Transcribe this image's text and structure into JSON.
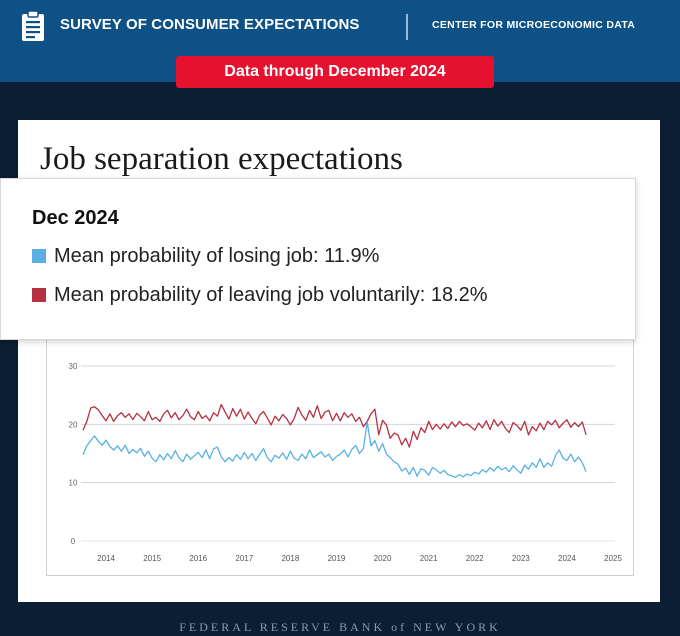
{
  "header": {
    "title": "SURVEY OF CONSUMER EXPECTATIONS",
    "org": "CENTER FOR MICROECONOMIC DATA",
    "icon": "clipboard-icon"
  },
  "badge": {
    "label": "Data through December 2024"
  },
  "card": {
    "title": "Job separation expectations"
  },
  "tooltip": {
    "period": "Dec 2024",
    "rows": [
      {
        "label": "Mean probability of losing job: 11.9%",
        "color": "#5ab0e6"
      },
      {
        "label": "Mean probability of leaving job voluntarily: 18.2%",
        "color": "#b5313f"
      }
    ]
  },
  "footer": {
    "text": "FEDERAL RESERVE BANK of NEW YORK"
  },
  "chart_data": {
    "type": "line",
    "ylim": [
      0,
      30
    ],
    "xlim": [
      2013.5,
      2025
    ],
    "yticks": [
      "0",
      "10",
      "20",
      "30"
    ],
    "xticks": [
      "2014",
      "2015",
      "2016",
      "2017",
      "2018",
      "2019",
      "2020",
      "2021",
      "2022",
      "2023",
      "2024",
      "2025"
    ],
    "grid": true,
    "series": [
      {
        "name": "Mean probability of leaving job voluntarily",
        "color": "#b5313f",
        "x_start": 2013.5,
        "x_step": 0.0833333,
        "values": [
          19.0,
          20.5,
          22.8,
          23.0,
          22.5,
          21.5,
          20.6,
          21.8,
          20.5,
          21.5,
          22.0,
          21.2,
          21.8,
          20.8,
          21.9,
          21.3,
          20.6,
          22.2,
          20.8,
          21.2,
          20.5,
          21.8,
          22.4,
          21.1,
          22.0,
          20.8,
          21.5,
          22.6,
          21.3,
          20.8,
          22.2,
          21.0,
          21.5,
          20.6,
          22.0,
          21.4,
          23.4,
          22.1,
          20.9,
          22.7,
          21.4,
          22.6,
          20.9,
          22.1,
          21.0,
          20.1,
          21.6,
          22.2,
          21.1,
          19.9,
          21.4,
          20.6,
          21.7,
          21.0,
          19.9,
          21.0,
          22.9,
          21.6,
          20.7,
          22.4,
          21.2,
          23.2,
          21.0,
          22.1,
          22.4,
          20.6,
          21.9,
          20.6,
          22.0,
          21.2,
          21.8,
          20.5,
          21.2,
          19.6,
          20.5,
          21.8,
          22.6,
          18.2,
          20.7,
          19.9,
          17.6,
          18.5,
          18.2,
          16.5,
          17.6,
          16.1,
          18.8,
          17.4,
          19.4,
          18.6,
          20.5,
          19.1,
          20.0,
          19.2,
          20.1,
          19.3,
          20.4,
          19.6,
          20.5,
          19.8,
          20.1,
          19.6,
          19.0,
          20.2,
          19.4,
          20.6,
          19.1,
          20.8,
          19.7,
          20.5,
          19.3,
          18.6,
          20.3,
          19.8,
          19.0,
          20.5,
          18.2,
          19.6,
          18.9,
          20.2,
          19.1,
          20.5,
          19.9,
          20.7,
          19.4,
          20.2,
          20.8,
          19.5,
          20.3,
          19.6,
          20.4,
          18.2
        ]
      },
      {
        "name": "Mean probability of losing job",
        "color": "#5ab0e6",
        "x_start": 2013.5,
        "x_step": 0.0833333,
        "values": [
          14.8,
          16.3,
          17.2,
          18.0,
          17.1,
          16.4,
          17.3,
          16.2,
          15.6,
          16.3,
          15.4,
          16.4,
          15.0,
          15.7,
          15.1,
          15.9,
          14.5,
          15.4,
          14.2,
          13.6,
          14.8,
          13.9,
          15.0,
          14.1,
          15.5,
          14.3,
          13.6,
          14.9,
          14.0,
          14.6,
          15.2,
          14.3,
          15.6,
          14.1,
          15.8,
          16.1,
          14.4,
          13.6,
          14.3,
          13.7,
          14.8,
          14.0,
          15.2,
          14.1,
          15.0,
          13.8,
          14.9,
          15.8,
          14.3,
          13.6,
          14.7,
          14.2,
          15.1,
          14.0,
          15.4,
          14.2,
          13.8,
          14.9,
          14.1,
          15.6,
          14.3,
          14.8,
          15.3,
          14.4,
          14.9,
          13.8,
          14.5,
          14.9,
          15.6,
          14.4,
          15.7,
          16.4,
          15.0,
          15.8,
          20.4,
          16.3,
          17.2,
          15.4,
          16.7,
          14.9,
          14.3,
          13.6,
          13.2,
          12.0,
          12.5,
          11.4,
          12.6,
          11.1,
          12.4,
          12.1,
          11.3,
          12.6,
          12.2,
          11.6,
          12.1,
          11.4,
          11.2,
          10.9,
          11.4,
          11.0,
          11.5,
          11.2,
          11.8,
          11.5,
          12.2,
          11.8,
          12.6,
          12.0,
          12.8,
          12.2,
          12.6,
          11.9,
          12.9,
          12.2,
          11.6,
          13.0,
          12.3,
          13.4,
          12.6,
          14.1,
          12.6,
          13.4,
          12.8,
          14.6,
          15.6,
          14.2,
          13.8,
          14.9,
          13.6,
          14.4,
          13.4,
          11.9
        ]
      }
    ]
  }
}
